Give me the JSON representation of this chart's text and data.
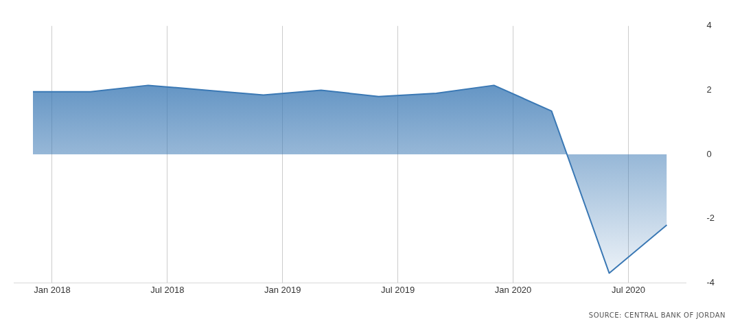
{
  "chart_data": {
    "type": "area",
    "x": [
      "2017-12",
      "2018-03",
      "2018-06",
      "2018-09",
      "2018-12",
      "2019-03",
      "2019-06",
      "2019-09",
      "2019-12",
      "2020-03",
      "2020-06",
      "2020-09"
    ],
    "series": [
      {
        "color": "#3a78b4",
        "values": [
          1.95,
          1.95,
          2.15,
          2.0,
          1.85,
          2.0,
          1.8,
          1.9,
          2.15,
          1.35,
          -3.7,
          -2.2
        ]
      }
    ],
    "xticks": [
      {
        "value": "2018-01",
        "label": "Jan 2018"
      },
      {
        "value": "2018-07",
        "label": "Jul 2018"
      },
      {
        "value": "2019-01",
        "label": "Jan 2019"
      },
      {
        "value": "2019-07",
        "label": "Jul 2019"
      },
      {
        "value": "2020-01",
        "label": "Jan 2020"
      },
      {
        "value": "2020-07",
        "label": "Jul 2020"
      }
    ],
    "xlim": [
      "2017-11",
      "2020-10"
    ],
    "ylim": [
      -4,
      4
    ],
    "yticks": [
      -4,
      -2,
      0,
      2,
      4
    ],
    "grid": "x",
    "marker": "none",
    "annotations": [
      "SOURCE: CENTRAL BANK OF JORDAN"
    ]
  }
}
